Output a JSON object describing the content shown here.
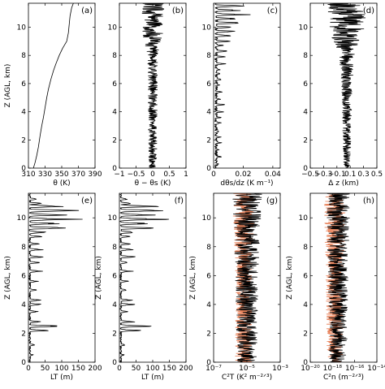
{
  "colors": {
    "primary": "#000000",
    "secondary": "#e8825a"
  },
  "chart_data": [
    {
      "type": "line",
      "letter": "(a)",
      "xlabel": "θ (K)",
      "ylabel": "Z (AGL, km)",
      "xlim": [
        310,
        390
      ],
      "ylim": [
        0,
        11.7
      ],
      "xscale": "linear",
      "xticks": [
        310,
        330,
        350,
        370,
        390
      ],
      "xticklabels": [
        "310",
        "330",
        "350",
        "370",
        "390"
      ],
      "yticks": [
        0,
        2,
        4,
        6,
        8,
        10
      ],
      "yticklabels": [
        "0",
        "2",
        "4",
        "6",
        "8",
        "10"
      ],
      "series": [
        {
          "style": "smooth",
          "color": "primary",
          "points": [
            [
              316,
              0
            ],
            [
              318,
              0.4
            ],
            [
              320,
              0.9
            ],
            [
              322,
              1.5
            ],
            [
              324,
              2.3
            ],
            [
              326,
              3.0
            ],
            [
              328,
              3.6
            ],
            [
              330,
              4.3
            ],
            [
              332,
              5.0
            ],
            [
              334,
              5.6
            ],
            [
              337,
              6.3
            ],
            [
              340,
              6.9
            ],
            [
              343,
              7.4
            ],
            [
              347,
              8.0
            ],
            [
              351,
              8.5
            ],
            [
              356,
              9.0
            ],
            [
              358,
              9.6
            ],
            [
              359,
              10.2
            ],
            [
              360,
              10.8
            ],
            [
              362,
              11.4
            ],
            [
              364,
              11.7
            ]
          ]
        }
      ]
    },
    {
      "type": "line",
      "letter": "(b)",
      "xlabel": "θ − θs (K)",
      "ylabel": "",
      "xlim": [
        -1,
        1
      ],
      "ylim": [
        0,
        11.7
      ],
      "xscale": "linear",
      "xticks": [
        -1,
        -0.5,
        0,
        0.5,
        1
      ],
      "xticklabels": [
        "−1",
        "−0.5",
        "0",
        "0.5",
        "1"
      ],
      "yticks": [
        0,
        2,
        4,
        6,
        8,
        10
      ],
      "yticklabels": [
        "0",
        "2",
        "4",
        "6",
        "8",
        "10"
      ],
      "series": [
        {
          "style": "noise",
          "color": "primary",
          "center": 0.0,
          "amp": [
            [
              0,
              0.12
            ],
            [
              8,
              0.15
            ],
            [
              9.5,
              0.3
            ],
            [
              11.7,
              0.35
            ]
          ],
          "seed": 11
        }
      ]
    },
    {
      "type": "line",
      "letter": "(c)",
      "xlabel": "dθs/dz (K m⁻¹)",
      "ylabel": "",
      "xlim": [
        0,
        0.045
      ],
      "ylim": [
        0,
        11.7
      ],
      "xscale": "linear",
      "xticks": [
        0,
        0.02,
        0.04
      ],
      "xticklabels": [
        "0",
        "0.02",
        "0.04"
      ],
      "yticks": [
        0,
        2,
        4,
        6,
        8,
        10
      ],
      "yticklabels": [
        "0",
        "2",
        "4",
        "6",
        "8",
        "10"
      ],
      "series": [
        {
          "style": "spiky",
          "color": "primary",
          "base": 0.002,
          "peaks": [
            [
              0.3,
              0.004
            ],
            [
              0.8,
              0.005
            ],
            [
              1.3,
              0.004
            ],
            [
              1.8,
              0.005
            ],
            [
              2.2,
              0.006
            ],
            [
              2.6,
              0.005
            ],
            [
              3.2,
              0.006
            ],
            [
              3.6,
              0.005
            ],
            [
              4.0,
              0.007
            ],
            [
              4.5,
              0.008
            ],
            [
              4.9,
              0.005
            ],
            [
              5.4,
              0.006
            ],
            [
              5.9,
              0.005
            ],
            [
              6.3,
              0.007
            ],
            [
              6.7,
              0.006
            ],
            [
              7.0,
              0.005
            ],
            [
              7.4,
              0.009
            ],
            [
              7.9,
              0.008
            ],
            [
              8.3,
              0.01
            ],
            [
              8.7,
              0.007
            ],
            [
              9.0,
              0.012
            ],
            [
              9.4,
              0.014
            ],
            [
              9.7,
              0.016
            ],
            [
              10.0,
              0.012
            ],
            [
              10.3,
              0.02
            ],
            [
              10.6,
              0.018
            ],
            [
              10.9,
              0.024
            ],
            [
              11.2,
              0.018
            ],
            [
              11.5,
              0.022
            ]
          ],
          "seed": 5
        }
      ]
    },
    {
      "type": "line",
      "letter": "(d)",
      "xlabel": "Δ z (km)",
      "ylabel": "",
      "xlim": [
        -0.5,
        0.5
      ],
      "ylim": [
        0,
        11.7
      ],
      "xscale": "linear",
      "xticks": [
        -0.5,
        -0.3,
        -0.1,
        0.1,
        0.3,
        0.5
      ],
      "xticklabels": [
        "−0.5",
        "−0.3",
        "−0.1",
        "0.1",
        "0.3",
        "0.5"
      ],
      "yticks": [
        0,
        2,
        4,
        6,
        8,
        10
      ],
      "yticklabels": [
        "0",
        "2",
        "4",
        "6",
        "8",
        "10"
      ],
      "series": [
        {
          "style": "noise",
          "color": "primary",
          "center": 0.05,
          "amp": [
            [
              0,
              0.05
            ],
            [
              6,
              0.08
            ],
            [
              8,
              0.12
            ],
            [
              9.5,
              0.25
            ],
            [
              11.7,
              0.3
            ]
          ],
          "seed": 23
        }
      ]
    },
    {
      "type": "line",
      "letter": "(e)",
      "xlabel": "LT (m)",
      "ylabel": "Z (AGL, km)",
      "xlim": [
        0,
        200
      ],
      "ylim": [
        0,
        11.7
      ],
      "xscale": "linear",
      "xticks": [
        0,
        50,
        100,
        150,
        200
      ],
      "xticklabels": [
        "0",
        "50",
        "100",
        "150",
        "200"
      ],
      "yticks": [
        0,
        2,
        4,
        6,
        8,
        10
      ],
      "yticklabels": [
        "0",
        "2",
        "4",
        "6",
        "8",
        "10"
      ],
      "series": [
        {
          "style": "spiky",
          "color": "primary",
          "base": 5,
          "peaks": [
            [
              0.5,
              15
            ],
            [
              1.2,
              20
            ],
            [
              2.2,
              60
            ],
            [
              2.5,
              100
            ],
            [
              2.8,
              45
            ],
            [
              3.5,
              30
            ],
            [
              4.0,
              50
            ],
            [
              4.3,
              40
            ],
            [
              5.0,
              25
            ],
            [
              5.6,
              30
            ],
            [
              6.3,
              40
            ],
            [
              6.9,
              35
            ],
            [
              7.3,
              50
            ],
            [
              7.8,
              45
            ],
            [
              8.2,
              35
            ],
            [
              8.7,
              40
            ],
            [
              9.0,
              60
            ],
            [
              9.3,
              130
            ],
            [
              9.6,
              90
            ],
            [
              9.9,
              150
            ],
            [
              10.2,
              110
            ],
            [
              10.5,
              165
            ],
            [
              10.8,
              130
            ],
            [
              11.0,
              40
            ],
            [
              11.3,
              30
            ]
          ],
          "seed": 31
        }
      ]
    },
    {
      "type": "line",
      "letter": "(f)",
      "xlabel": "LT (m)",
      "ylabel": "Z (AGL, km)",
      "xlim": [
        0,
        200
      ],
      "ylim": [
        0,
        11.7
      ],
      "xscale": "linear",
      "xticks": [
        0,
        50,
        100,
        150,
        200
      ],
      "xticklabels": [
        "0",
        "50",
        "100",
        "150",
        "200"
      ],
      "yticks": [
        0,
        2,
        4,
        6,
        8,
        10
      ],
      "yticklabels": [
        "0",
        "2",
        "4",
        "6",
        "8",
        "10"
      ],
      "series": [
        {
          "style": "spiky",
          "color": "primary",
          "base": 5,
          "peaks": [
            [
              0.5,
              15
            ],
            [
              1.2,
              20
            ],
            [
              2.2,
              60
            ],
            [
              2.5,
              100
            ],
            [
              2.8,
              45
            ],
            [
              3.5,
              30
            ],
            [
              4.0,
              50
            ],
            [
              4.3,
              40
            ],
            [
              5.0,
              25
            ],
            [
              5.6,
              30
            ],
            [
              6.3,
              40
            ],
            [
              6.9,
              35
            ],
            [
              7.3,
              50
            ],
            [
              7.8,
              45
            ],
            [
              8.2,
              35
            ],
            [
              8.7,
              40
            ],
            [
              9.0,
              60
            ],
            [
              9.3,
              130
            ],
            [
              9.6,
              90
            ],
            [
              9.9,
              150
            ],
            [
              10.2,
              110
            ],
            [
              10.5,
              165
            ],
            [
              10.8,
              130
            ],
            [
              11.0,
              40
            ],
            [
              11.3,
              30
            ]
          ],
          "seed": 37
        }
      ]
    },
    {
      "type": "line",
      "letter": "(g)",
      "xlabel": "C²T (K² m⁻²ᐟ³)",
      "ylabel": "Z (AGL, km)",
      "xlim": [
        -7,
        -3
      ],
      "ylim": [
        0,
        11.7
      ],
      "xscale": "log",
      "xticks": [
        -7,
        -5,
        -3
      ],
      "xticklabels": [
        "10⁻⁷",
        "10⁻⁵",
        "10⁻³"
      ],
      "yticks": [
        0,
        2,
        4,
        6,
        8,
        10
      ],
      "yticklabels": [
        "0",
        "2",
        "4",
        "6",
        "8",
        "10"
      ],
      "series": [
        {
          "style": "noise",
          "color": "secondary",
          "width": 1.3,
          "center": -5.2,
          "amp": [
            [
              0,
              0.5
            ],
            [
              6,
              0.5
            ],
            [
              9,
              0.6
            ],
            [
              11.7,
              0.7
            ]
          ],
          "seed": 41
        },
        {
          "style": "noise",
          "color": "primary",
          "center": -5.0,
          "amp": [
            [
              0,
              0.6
            ],
            [
              6,
              0.7
            ],
            [
              9,
              0.8
            ],
            [
              11.7,
              0.9
            ]
          ],
          "seed": 43
        }
      ]
    },
    {
      "type": "line",
      "letter": "(h)",
      "xlabel": "C²n (m⁻²ᐟ³)",
      "ylabel": "Z (AGL, km)",
      "xlim": [
        -20,
        -14
      ],
      "ylim": [
        0,
        11.7
      ],
      "xscale": "log",
      "xticks": [
        -20,
        -18,
        -16,
        -14
      ],
      "xticklabels": [
        "10⁻²⁰",
        "10⁻¹⁸",
        "10⁻¹⁶",
        "10⁻¹⁴"
      ],
      "yticks": [
        0,
        2,
        4,
        6,
        8,
        10
      ],
      "yticklabels": [
        "0",
        "2",
        "4",
        "6",
        "8",
        "10"
      ],
      "series": [
        {
          "style": "noise",
          "color": "secondary",
          "width": 1.3,
          "center": -17.8,
          "amp": [
            [
              0,
              0.7
            ],
            [
              6,
              0.8
            ],
            [
              9,
              0.9
            ],
            [
              11.7,
              1.0
            ]
          ],
          "seed": 51
        },
        {
          "style": "noise",
          "color": "primary",
          "center": -17.5,
          "amp": [
            [
              0,
              0.8
            ],
            [
              6,
              0.9
            ],
            [
              9,
              1.0
            ],
            [
              11.7,
              1.1
            ]
          ],
          "seed": 53
        }
      ]
    }
  ]
}
